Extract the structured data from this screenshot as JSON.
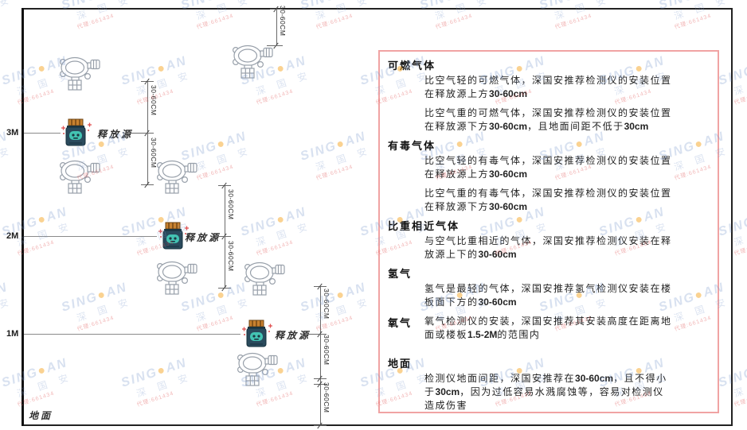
{
  "watermark": {
    "brand_left": "SING",
    "brand_dot": "●",
    "brand_right": "AN",
    "brand_cn": "深 国 安",
    "brand_sub": "代理:661434"
  },
  "axis": {
    "height_labels": [
      "3M",
      "2M",
      "1M"
    ],
    "ground_label": "地面"
  },
  "diagram": {
    "release_source_label": "释放源",
    "dimension_label": "30-60CM"
  },
  "panel": {
    "sections": [
      {
        "heading": "可燃气体",
        "paragraphs": [
          "比空气轻的可燃气体，深国安推荐检测仪的安装位置在释放源上方30-60cm",
          "比空气重的可燃气体，深国安推荐检测仪的安装位置在释放源下方30-60cm，且地面间距不低于30cm"
        ]
      },
      {
        "heading": "有毒气体",
        "paragraphs": [
          "比空气轻的有毒气体，深国安推荐检测仪的安装位置在释放源上方30-60cm",
          "比空气重的有毒气体，深国安推荐检测仪的安装位置在释放源下方30-60cm"
        ]
      },
      {
        "heading": "比重相近气体",
        "paragraphs": [
          "与空气比重相近的气体，深国安推荐检测仪安装在释放源上下的30-60cm"
        ]
      },
      {
        "heading": "氢气",
        "paragraphs": [
          "氢气是最轻的气体，深国安推荐氢气检测仪安装在楼板面下方的30-60cm"
        ]
      },
      {
        "heading": "氧气",
        "inline": true,
        "paragraphs": [
          "氧气检测仪的安装，深国安推荐其安装高度在距离地面或楼板1.5-2M的范围内"
        ]
      },
      {
        "heading": "地面",
        "gap_top": true,
        "paragraphs": [
          "检测仪地面间距，深国安推荐在30-60cm，且不得小于30cm，因为过低容易水溅腐蚀等，容易对检测仪造成伤害"
        ]
      }
    ]
  },
  "colors": {
    "panel_border": "#f0a3a3",
    "detector_stroke": "#98a0aa",
    "source_cap": "#c88230",
    "source_body": "#2a4a5c",
    "source_face": "#43c3b3",
    "sparkle_red": "#e04f4f",
    "watermark_blue": "#7d9bcd",
    "watermark_orange": "#f5a623"
  }
}
